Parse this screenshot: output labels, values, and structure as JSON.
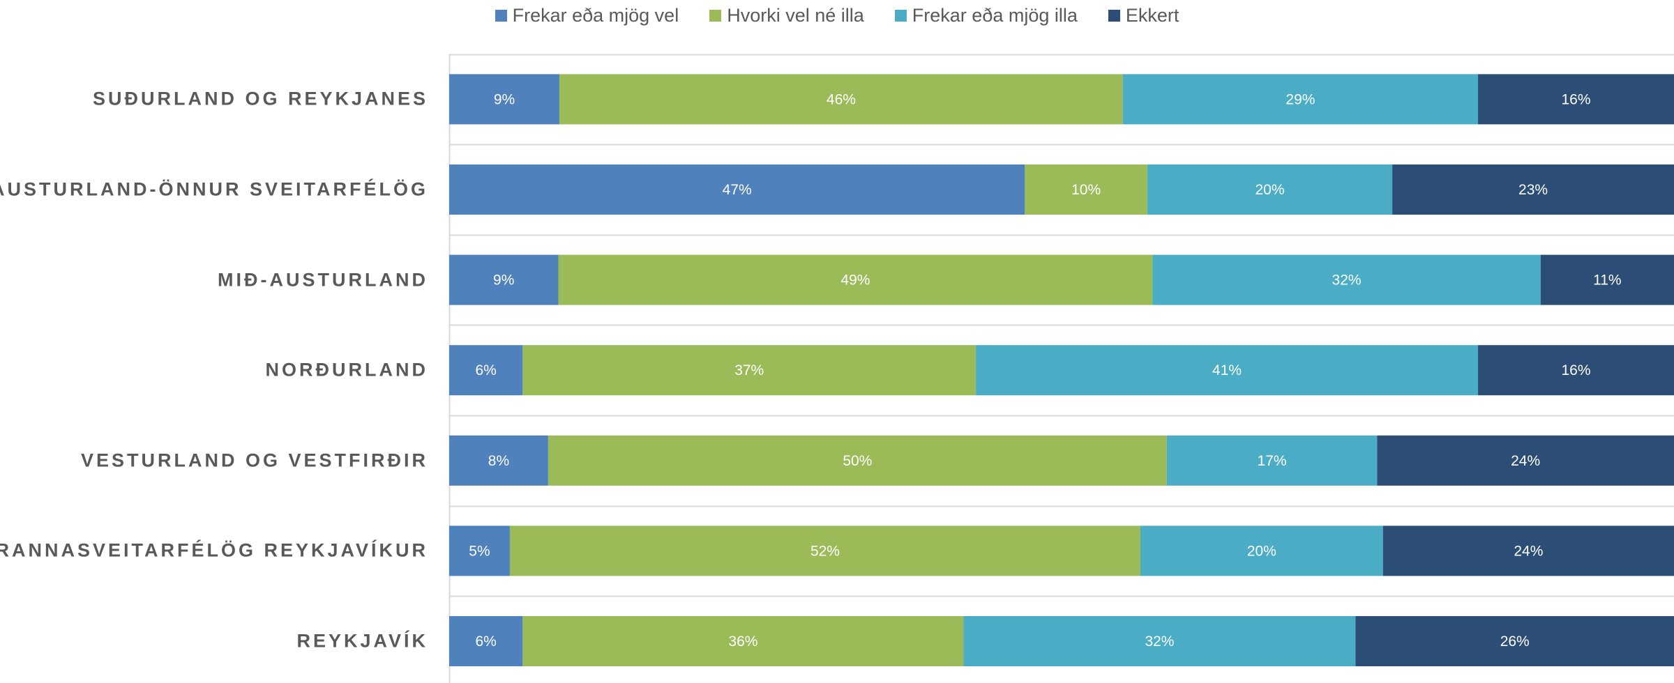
{
  "chart_data": {
    "type": "bar",
    "orientation": "horizontal",
    "stacked": true,
    "title": "",
    "xlabel": "",
    "ylabel": "",
    "xlim": [
      0,
      100
    ],
    "legend_position": "top",
    "categories": [
      "SUÐURLAND OG REYKJANES",
      "AUSTURLAND-ÖNNUR SVEITARFÉLÖG",
      "MIÐ-AUSTURLAND",
      "NORÐURLAND",
      "VESTURLAND OG VESTFIRÐIR",
      "NÁGRANNASVEITARFÉLÖG REYKJAVÍKUR",
      "REYKJAVÍK"
    ],
    "series": [
      {
        "name": "Frekar eða mjög vel",
        "color": "#4f81bd",
        "values": [
          9,
          47,
          9,
          6,
          8,
          5,
          6
        ]
      },
      {
        "name": "Hvorki vel né illa",
        "color": "#9bbb59",
        "values": [
          46,
          10,
          49,
          37,
          50,
          52,
          36
        ]
      },
      {
        "name": "Frekar eða mjög illa",
        "color": "#4bacc6",
        "values": [
          29,
          20,
          32,
          41,
          17,
          20,
          32
        ]
      },
      {
        "name": "Ekkert",
        "color": "#2c4d75",
        "values": [
          16,
          23,
          11,
          16,
          24,
          24,
          26
        ]
      }
    ],
    "data_labels": [
      [
        "9%",
        "47%",
        "9%",
        "6%",
        "8%",
        "5%",
        "6%"
      ],
      [
        "46%",
        "10%",
        "49%",
        "37%",
        "50%",
        "52%",
        "36%"
      ],
      [
        "29%",
        "20%",
        "32%",
        "41%",
        "17%",
        "20%",
        "32%"
      ],
      [
        "16%",
        "23%",
        "11%",
        "16%",
        "24%",
        "24%",
        "26%"
      ]
    ],
    "grid": true
  }
}
